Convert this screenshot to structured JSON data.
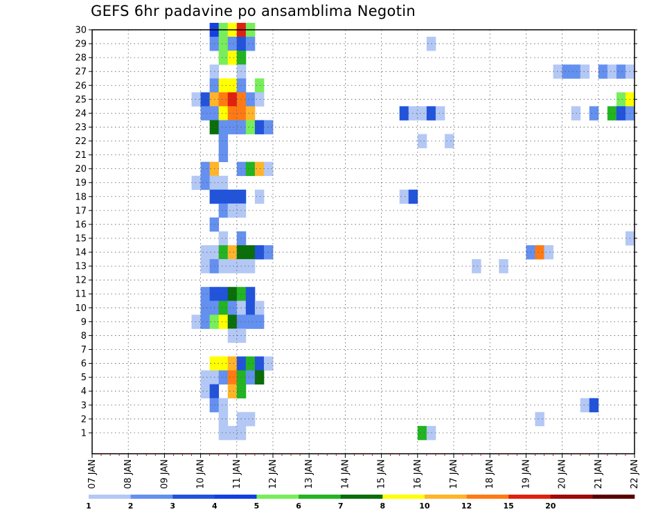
{
  "chart_data": {
    "type": "heatmap",
    "title": "GEFS 6hr padavine po ansamblima Negotin",
    "xlabel": "",
    "ylabel": "",
    "x_ticks": [
      "07 JAN",
      "08 JAN",
      "09 JAN",
      "10 JAN",
      "11 JAN",
      "12 JAN",
      "13 JAN",
      "14 JAN",
      "15 JAN",
      "16 JAN",
      "17 JAN",
      "18 JAN",
      "19 JAN",
      "20 JAN",
      "21 JAN",
      "22 JAN"
    ],
    "y_ticks": [
      1,
      2,
      3,
      4,
      5,
      6,
      7,
      8,
      9,
      10,
      11,
      12,
      13,
      14,
      15,
      16,
      17,
      18,
      19,
      20,
      21,
      22,
      23,
      24,
      25,
      26,
      27,
      28,
      29,
      30
    ],
    "xlim_days": [
      0,
      15
    ],
    "ylim": [
      0,
      30
    ],
    "grid": true,
    "colorbar": {
      "labels": [
        "1",
        "2",
        "3",
        "4",
        "5",
        "6",
        "7",
        "8",
        "10",
        "12",
        "15",
        "20"
      ],
      "colors": [
        "#b4c8f5",
        "#6490ef",
        "#2153db",
        "#1440e0",
        "#78ee5a",
        "#22b422",
        "#0a6e0a",
        "#ffff00",
        "#ffb42a",
        "#ff7a14",
        "#e02010",
        "#a00a0a",
        "#5a0000"
      ]
    },
    "cell_note": "cells: [member, step_from_07JAN00Z_in_6h, category_index]",
    "cells": [
      [
        30,
        13,
        3
      ],
      [
        30,
        14,
        4
      ],
      [
        30,
        15,
        7
      ],
      [
        30,
        16,
        10
      ],
      [
        30,
        17,
        4
      ],
      [
        29,
        13,
        1
      ],
      [
        29,
        14,
        4
      ],
      [
        29,
        15,
        1
      ],
      [
        29,
        16,
        2
      ],
      [
        29,
        17,
        1
      ],
      [
        29,
        37,
        0
      ],
      [
        28,
        14,
        4
      ],
      [
        28,
        15,
        7
      ],
      [
        28,
        16,
        5
      ],
      [
        27,
        13,
        0
      ],
      [
        27,
        16,
        0
      ],
      [
        27,
        51,
        0
      ],
      [
        27,
        52,
        1
      ],
      [
        27,
        53,
        1
      ],
      [
        27,
        54,
        0
      ],
      [
        27,
        56,
        1
      ],
      [
        27,
        57,
        0
      ],
      [
        27,
        58,
        1
      ],
      [
        27,
        59,
        0
      ],
      [
        26,
        13,
        1
      ],
      [
        26,
        14,
        7
      ],
      [
        26,
        15,
        7
      ],
      [
        26,
        16,
        1
      ],
      [
        26,
        18,
        4
      ],
      [
        25,
        11,
        0
      ],
      [
        25,
        12,
        2
      ],
      [
        25,
        13,
        8
      ],
      [
        25,
        14,
        9
      ],
      [
        25,
        15,
        10
      ],
      [
        25,
        16,
        9
      ],
      [
        25,
        17,
        1
      ],
      [
        25,
        18,
        0
      ],
      [
        25,
        58,
        4
      ],
      [
        25,
        59,
        7
      ],
      [
        24,
        12,
        1
      ],
      [
        24,
        13,
        1
      ],
      [
        24,
        14,
        7
      ],
      [
        24,
        15,
        9
      ],
      [
        24,
        16,
        9
      ],
      [
        24,
        17,
        8
      ],
      [
        24,
        34,
        2
      ],
      [
        24,
        35,
        0
      ],
      [
        24,
        36,
        0
      ],
      [
        24,
        37,
        2
      ],
      [
        24,
        38,
        0
      ],
      [
        24,
        53,
        0
      ],
      [
        24,
        55,
        1
      ],
      [
        24,
        57,
        5
      ],
      [
        24,
        58,
        2
      ],
      [
        24,
        59,
        1
      ],
      [
        23,
        13,
        6
      ],
      [
        23,
        14,
        1
      ],
      [
        23,
        15,
        1
      ],
      [
        23,
        16,
        1
      ],
      [
        23,
        17,
        4
      ],
      [
        23,
        18,
        2
      ],
      [
        23,
        19,
        1
      ],
      [
        22,
        14,
        1
      ],
      [
        22,
        36,
        0
      ],
      [
        22,
        39,
        0
      ],
      [
        21,
        14,
        1
      ],
      [
        20,
        12,
        1
      ],
      [
        20,
        13,
        8
      ],
      [
        20,
        16,
        1
      ],
      [
        20,
        17,
        5
      ],
      [
        20,
        18,
        8
      ],
      [
        20,
        19,
        0
      ],
      [
        19,
        11,
        0
      ],
      [
        19,
        12,
        1
      ],
      [
        19,
        13,
        0
      ],
      [
        19,
        14,
        0
      ],
      [
        18,
        13,
        2
      ],
      [
        18,
        14,
        2
      ],
      [
        18,
        15,
        2
      ],
      [
        18,
        16,
        2
      ],
      [
        18,
        18,
        0
      ],
      [
        18,
        34,
        0
      ],
      [
        18,
        35,
        2
      ],
      [
        17,
        14,
        1
      ],
      [
        17,
        15,
        0
      ],
      [
        17,
        16,
        0
      ],
      [
        16,
        13,
        1
      ],
      [
        15,
        14,
        0
      ],
      [
        15,
        16,
        1
      ],
      [
        15,
        59,
        0
      ],
      [
        14,
        12,
        0
      ],
      [
        14,
        13,
        0
      ],
      [
        14,
        14,
        5
      ],
      [
        14,
        15,
        8
      ],
      [
        14,
        16,
        6
      ],
      [
        14,
        17,
        6
      ],
      [
        14,
        18,
        2
      ],
      [
        14,
        19,
        1
      ],
      [
        14,
        48,
        1
      ],
      [
        14,
        49,
        9
      ],
      [
        14,
        50,
        0
      ],
      [
        13,
        12,
        0
      ],
      [
        13,
        13,
        1
      ],
      [
        13,
        14,
        0
      ],
      [
        13,
        15,
        0
      ],
      [
        13,
        16,
        0
      ],
      [
        13,
        17,
        0
      ],
      [
        13,
        42,
        0
      ],
      [
        13,
        45,
        0
      ],
      [
        11,
        12,
        1
      ],
      [
        11,
        13,
        2
      ],
      [
        11,
        14,
        2
      ],
      [
        11,
        15,
        6
      ],
      [
        11,
        16,
        5
      ],
      [
        11,
        17,
        2
      ],
      [
        10,
        12,
        1
      ],
      [
        10,
        13,
        1
      ],
      [
        10,
        14,
        5
      ],
      [
        10,
        15,
        1
      ],
      [
        10,
        16,
        0
      ],
      [
        10,
        17,
        2
      ],
      [
        10,
        18,
        0
      ],
      [
        9,
        11,
        0
      ],
      [
        9,
        12,
        1
      ],
      [
        9,
        13,
        4
      ],
      [
        9,
        14,
        7
      ],
      [
        9,
        15,
        6
      ],
      [
        9,
        16,
        1
      ],
      [
        9,
        17,
        1
      ],
      [
        9,
        18,
        1
      ],
      [
        8,
        15,
        0
      ],
      [
        8,
        16,
        0
      ],
      [
        6,
        13,
        7
      ],
      [
        6,
        14,
        7
      ],
      [
        6,
        15,
        8
      ],
      [
        6,
        16,
        2
      ],
      [
        6,
        17,
        5
      ],
      [
        6,
        18,
        2
      ],
      [
        6,
        19,
        0
      ],
      [
        5,
        12,
        0
      ],
      [
        5,
        13,
        0
      ],
      [
        5,
        14,
        1
      ],
      [
        5,
        15,
        9
      ],
      [
        5,
        16,
        5
      ],
      [
        5,
        17,
        1
      ],
      [
        5,
        18,
        6
      ],
      [
        4,
        12,
        0
      ],
      [
        4,
        13,
        2
      ],
      [
        4,
        15,
        8
      ],
      [
        4,
        16,
        5
      ],
      [
        3,
        13,
        1
      ],
      [
        3,
        14,
        0
      ],
      [
        3,
        54,
        0
      ],
      [
        3,
        55,
        2
      ],
      [
        2,
        14,
        0
      ],
      [
        2,
        16,
        0
      ],
      [
        2,
        17,
        0
      ],
      [
        2,
        49,
        0
      ],
      [
        1,
        14,
        0
      ],
      [
        1,
        15,
        0
      ],
      [
        1,
        16,
        0
      ],
      [
        1,
        36,
        5
      ],
      [
        1,
        37,
        0
      ]
    ]
  }
}
